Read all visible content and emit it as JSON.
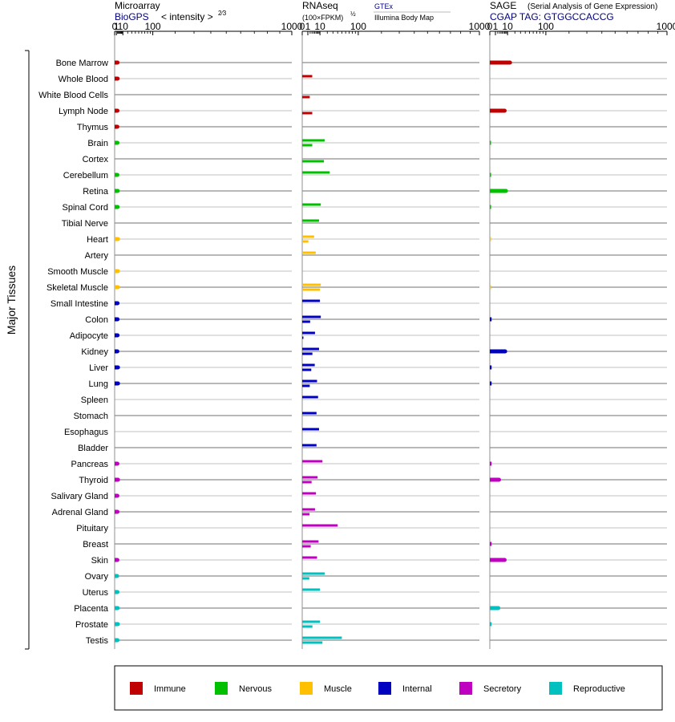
{
  "chart_data": {
    "type": "bar",
    "y_group_label": "Major Tissues",
    "categories": [
      "Bone Marrow",
      "Whole Blood",
      "White Blood Cells",
      "Lymph Node",
      "Thymus",
      "Brain",
      "Cortex",
      "Cerebellum",
      "Retina",
      "Spinal Cord",
      "Tibial Nerve",
      "Heart",
      "Artery",
      "Smooth Muscle",
      "Skeletal Muscle",
      "Small Intestine",
      "Colon",
      "Adipocyte",
      "Kidney",
      "Liver",
      "Lung",
      "Spleen",
      "Stomach",
      "Esophagus",
      "Bladder",
      "Pancreas",
      "Thyroid",
      "Salivary Gland",
      "Adrenal Gland",
      "Pituitary",
      "Breast",
      "Skin",
      "Ovary",
      "Uterus",
      "Placenta",
      "Prostate",
      "Testis"
    ],
    "category_groups": [
      "Immune",
      "Immune",
      "Immune",
      "Immune",
      "Immune",
      "Nervous",
      "Nervous",
      "Nervous",
      "Nervous",
      "Nervous",
      "Nervous",
      "Muscle",
      "Muscle",
      "Muscle",
      "Muscle",
      "Internal",
      "Internal",
      "Internal",
      "Internal",
      "Internal",
      "Internal",
      "Internal",
      "Internal",
      "Internal",
      "Internal",
      "Secretory",
      "Secretory",
      "Secretory",
      "Secretory",
      "Secretory",
      "Secretory",
      "Secretory",
      "Reproductive",
      "Reproductive",
      "Reproductive",
      "Reproductive",
      "Reproductive"
    ],
    "legend": [
      {
        "name": "Immune",
        "color": "#c00000"
      },
      {
        "name": "Nervous",
        "color": "#00c000"
      },
      {
        "name": "Muscle",
        "color": "#ffc000"
      },
      {
        "name": "Internal",
        "color": "#0000c0"
      },
      {
        "name": "Secretory",
        "color": "#c000c0"
      },
      {
        "name": "Reproductive",
        "color": "#00c0c0"
      }
    ],
    "legend_placement": "bottom",
    "panels": [
      {
        "id": "microarray",
        "title": "Microarray",
        "subtitle_left": "BioGPS",
        "subtitle_right": "< intensity >",
        "subtitle_exponent": "2⁄3",
        "tick_labels": [
          "0",
          "1",
          "10",
          "100",
          "1000"
        ],
        "tick_values": [
          0,
          1,
          10,
          100,
          1000
        ],
        "exponent": 0.6667,
        "xlim": [
          0,
          1000
        ],
        "series": [
          {
            "name": "BioGPS",
            "values": [
              2.1,
              2.2,
              null,
              2.0,
              1.9,
              2.0,
              null,
              1.9,
              2.2,
              2.2,
              null,
              2.5,
              null,
              2.4,
              2.5,
              2.1,
              2.1,
              2.1,
              1.9,
              2.6,
              2.6,
              null,
              null,
              null,
              null,
              1.9,
              2.6,
              1.9,
              2.0,
              null,
              null,
              1.9,
              1.6,
              2.0,
              2.2,
              2.4,
              2.0
            ]
          }
        ]
      },
      {
        "id": "rnaseq",
        "title": "RNAseq",
        "subtitle_left": "(100×FPKM)",
        "subtitle_exponent": "½",
        "source_top": "GTEx",
        "source_bottom": "Illumina Body Map",
        "tick_labels": [
          "0",
          "1",
          "10",
          "100",
          "1000"
        ],
        "tick_values": [
          0,
          1,
          10,
          100,
          1000
        ],
        "exponent": 0.5,
        "xlim": [
          0,
          1000
        ],
        "series": [
          {
            "name": "GTEx",
            "values": [
              null,
              3.2,
              null,
              null,
              null,
              16,
              null,
              24,
              null,
              11,
              9,
              4.5,
              5.8,
              null,
              11,
              10,
              11,
              5.2,
              9,
              5,
              7,
              8,
              6.5,
              9,
              6.5,
              13,
              7.5,
              6,
              5.2,
              40,
              8.5,
              7,
              16,
              10,
              null,
              10,
              50
            ]
          },
          {
            "name": "Illumina Body Map",
            "values": [
              null,
              null,
              1.8,
              3.2,
              null,
              3.2,
              15,
              null,
              null,
              null,
              null,
              1.2,
              null,
              null,
              10,
              null,
              2,
              0.02,
              3.3,
              2.6,
              1.8,
              null,
              null,
              null,
              null,
              null,
              2.8,
              null,
              1.7,
              null,
              2.3,
              null,
              1.6,
              null,
              null,
              3.3,
              13
            ]
          }
        ]
      },
      {
        "id": "sage",
        "title": "SAGE",
        "title_note": "(Serial Analysis of Gene Expression)",
        "subtitle_left": "CGAP TAG: GTGGCCACCG",
        "tick_labels": [
          "0",
          "1",
          "10",
          "100",
          "1000"
        ],
        "tick_values": [
          0,
          1,
          10,
          100,
          1000
        ],
        "exponent": 0.5,
        "xlim": [
          0,
          1000
        ],
        "series": [
          {
            "name": "CGAP",
            "values": [
              13,
              null,
              null,
              7,
              null,
              0.04,
              null,
              0.05,
              8.2,
              0.05,
              null,
              0.02,
              null,
              null,
              0.02,
              null,
              0.1,
              null,
              7.5,
              0.1,
              0.1,
              null,
              null,
              null,
              null,
              0.1,
              2.7,
              null,
              null,
              null,
              0.1,
              7,
              null,
              null,
              2.3,
              0.1,
              null
            ]
          }
        ]
      }
    ]
  }
}
